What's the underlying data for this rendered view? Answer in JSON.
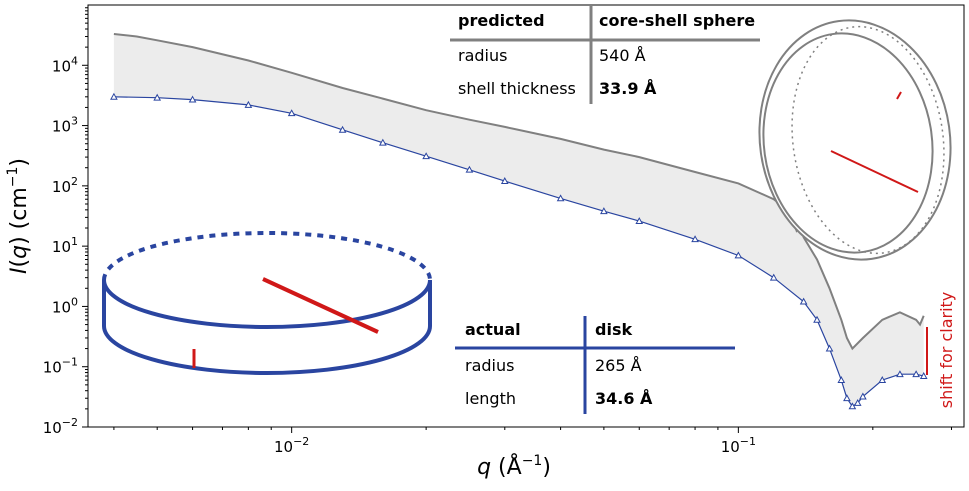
{
  "chart_data": {
    "type": "line",
    "xlabel": "q (Å⁻¹)",
    "ylabel": "I(q) (cm⁻¹)",
    "xscale": "log",
    "yscale": "log",
    "xlim": [
      0.0035,
      0.32
    ],
    "ylim": [
      0.01,
      100000
    ],
    "x_tick_labels": [
      {
        "value": 0.01,
        "base": "10",
        "exp": "−2"
      },
      {
        "value": 0.1,
        "base": "10",
        "exp": "−1"
      }
    ],
    "y_tick_labels": [
      {
        "value": 0.01,
        "base": "10",
        "exp": "−2"
      },
      {
        "value": 0.1,
        "base": "10",
        "exp": "−1"
      },
      {
        "value": 1,
        "base": "10",
        "exp": "0"
      },
      {
        "value": 10,
        "base": "10",
        "exp": "1"
      },
      {
        "value": 100,
        "base": "10",
        "exp": "2"
      },
      {
        "value": 1000,
        "base": "10",
        "exp": "3"
      },
      {
        "value": 10000,
        "base": "10",
        "exp": "4"
      }
    ],
    "series": [
      {
        "style": "line",
        "color": "#808080",
        "points": [
          [
            0.004,
            33000
          ],
          [
            0.0045,
            30000
          ],
          [
            0.005,
            26000
          ],
          [
            0.006,
            20000
          ],
          [
            0.008,
            12000
          ],
          [
            0.01,
            7500
          ],
          [
            0.013,
            4200
          ],
          [
            0.016,
            2800
          ],
          [
            0.02,
            1800
          ],
          [
            0.025,
            1250
          ],
          [
            0.03,
            950
          ],
          [
            0.04,
            600
          ],
          [
            0.05,
            400
          ],
          [
            0.06,
            300
          ],
          [
            0.08,
            170
          ],
          [
            0.1,
            110
          ],
          [
            0.12,
            60
          ],
          [
            0.13,
            38
          ],
          [
            0.135,
            18
          ],
          [
            0.138,
            22
          ],
          [
            0.14,
            14
          ],
          [
            0.15,
            6
          ],
          [
            0.16,
            2
          ],
          [
            0.17,
            0.6
          ],
          [
            0.175,
            0.3
          ],
          [
            0.18,
            0.2
          ],
          [
            0.19,
            0.3
          ],
          [
            0.21,
            0.6
          ],
          [
            0.23,
            0.8
          ],
          [
            0.25,
            0.6
          ],
          [
            0.255,
            0.5
          ],
          [
            0.26,
            0.7
          ]
        ]
      },
      {
        "style": "markers",
        "marker": "triangle",
        "color": "#2a45a0",
        "points": [
          [
            0.004,
            3000
          ],
          [
            0.005,
            2900
          ],
          [
            0.006,
            2700
          ],
          [
            0.008,
            2200
          ],
          [
            0.01,
            1600
          ],
          [
            0.013,
            850
          ],
          [
            0.016,
            520
          ],
          [
            0.02,
            310
          ],
          [
            0.025,
            185
          ],
          [
            0.03,
            120
          ],
          [
            0.04,
            62
          ],
          [
            0.05,
            38
          ],
          [
            0.06,
            26
          ],
          [
            0.08,
            13
          ],
          [
            0.1,
            7
          ],
          [
            0.12,
            3
          ],
          [
            0.14,
            1.2
          ],
          [
            0.15,
            0.6
          ],
          [
            0.16,
            0.2
          ],
          [
            0.17,
            0.06
          ],
          [
            0.175,
            0.03
          ],
          [
            0.18,
            0.022
          ],
          [
            0.185,
            0.025
          ],
          [
            0.19,
            0.032
          ],
          [
            0.21,
            0.06
          ],
          [
            0.23,
            0.075
          ],
          [
            0.25,
            0.075
          ],
          [
            0.26,
            0.07
          ]
        ]
      }
    ]
  },
  "predicted_table": {
    "col1_header": "predicted",
    "col2_header": "core-shell sphere",
    "rows": [
      {
        "label": "radius",
        "value": "540 Å",
        "bold": false
      },
      {
        "label": "shell thickness",
        "value": "33.9 Å",
        "bold": true
      }
    ]
  },
  "actual_table": {
    "col1_header": "actual",
    "col2_header": "disk",
    "rows": [
      {
        "label": "radius",
        "value": "265 Å",
        "bold": false
      },
      {
        "label": "length",
        "value": "34.6 Å",
        "bold": true
      }
    ]
  },
  "annotation": {
    "text": "shift for clarity"
  },
  "colors": {
    "predicted": "#808080",
    "actual": "#2a45a0",
    "highlight": "#d01818",
    "fill": "#ececec"
  }
}
